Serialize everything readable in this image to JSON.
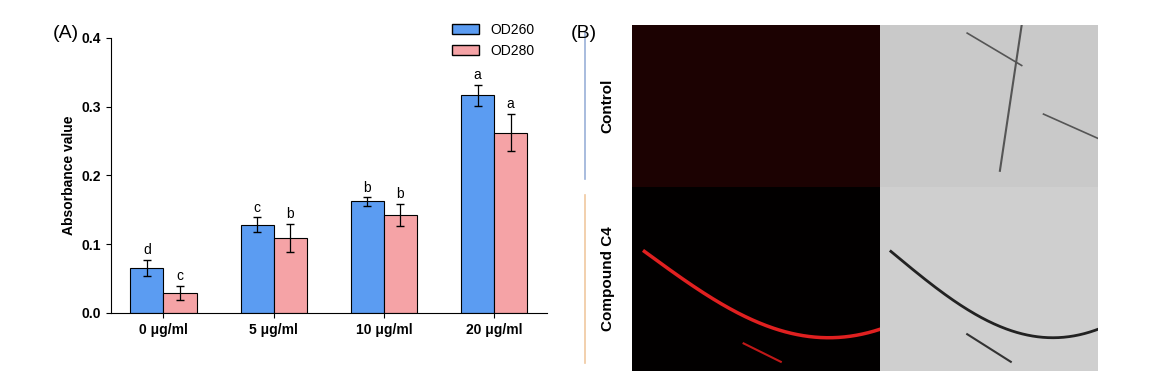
{
  "chart_data": {
    "type": "bar",
    "panel_label": "(A)",
    "y_label": "Absorbance value",
    "categories": [
      "0 μg/ml",
      "5 μg/ml",
      "10 μg/ml",
      "20 μg/ml"
    ],
    "series": [
      {
        "name": "OD260",
        "color": "#5b9cf2",
        "values": [
          0.065,
          0.128,
          0.162,
          0.316
        ],
        "errors": [
          0.012,
          0.011,
          0.006,
          0.015
        ],
        "letters": [
          "d",
          "c",
          "b",
          "a"
        ]
      },
      {
        "name": "OD280",
        "color": "#f5a3a6",
        "values": [
          0.029,
          0.109,
          0.142,
          0.262
        ],
        "errors": [
          0.01,
          0.02,
          0.016,
          0.027
        ],
        "letters": [
          "c",
          "b",
          "b",
          "a"
        ]
      }
    ],
    "ylim": [
      0.0,
      0.4
    ],
    "yticks": [
      0.0,
      0.1,
      0.2,
      0.3,
      0.4
    ],
    "legend": "upper right",
    "grid": false
  },
  "image_panel": {
    "label": "(B)",
    "rows": [
      "Control",
      "Compound C4"
    ]
  }
}
